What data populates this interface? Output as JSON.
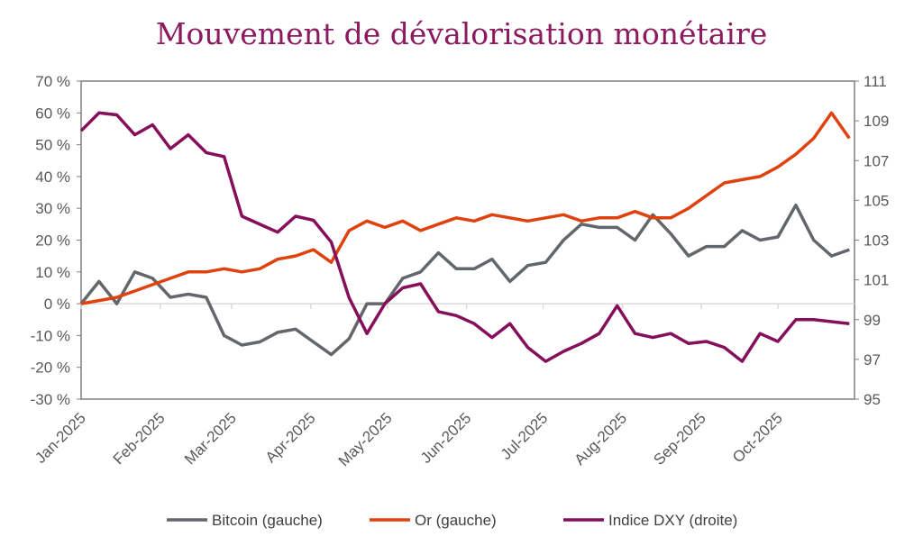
{
  "chart_data": {
    "type": "line",
    "title": "Mouvement de dévalorisation monétaire",
    "x": [
      "2025-01-01",
      "2025-01-08",
      "2025-01-15",
      "2025-01-22",
      "2025-01-29",
      "2025-02-05",
      "2025-02-12",
      "2025-02-19",
      "2025-02-26",
      "2025-03-05",
      "2025-03-12",
      "2025-03-19",
      "2025-03-26",
      "2025-04-02",
      "2025-04-09",
      "2025-04-16",
      "2025-04-23",
      "2025-04-30",
      "2025-05-07",
      "2025-05-14",
      "2025-05-21",
      "2025-05-28",
      "2025-06-04",
      "2025-06-11",
      "2025-06-18",
      "2025-06-25",
      "2025-07-02",
      "2025-07-09",
      "2025-07-16",
      "2025-07-23",
      "2025-07-30",
      "2025-08-06",
      "2025-08-13",
      "2025-08-20",
      "2025-08-27",
      "2025-09-03",
      "2025-09-10",
      "2025-09-17",
      "2025-09-24",
      "2025-10-01",
      "2025-10-08",
      "2025-10-15",
      "2025-10-22",
      "2025-10-29"
    ],
    "x_tick_labels": [
      "Jan-2025",
      "Feb-2025",
      "Mar-2025",
      "Apr-2025",
      "May-2025",
      "Jun-2025",
      "Jul-2025",
      "Aug-2025",
      "Sep-2025",
      "Oct-2025"
    ],
    "y_left": {
      "ylim": [
        -30,
        70
      ],
      "tick_labels": [
        "-30 %",
        "-20 %",
        "-10 %",
        "0 %",
        "10 %",
        "20 %",
        "30 %",
        "40 %",
        "50 %",
        "60 %",
        "70 %"
      ]
    },
    "y_right": {
      "ylim": [
        95,
        111
      ],
      "tick_labels": [
        "95",
        "97",
        "99",
        "101",
        "103",
        "105",
        "107",
        "109",
        "111"
      ]
    },
    "legend_position": "bottom",
    "grid": false,
    "series": [
      {
        "name": "Bitcoin (gauche)",
        "axis": "left",
        "color": "#63666a",
        "values": [
          0,
          7,
          0,
          10,
          8,
          2,
          3,
          2,
          -10,
          -13,
          -12,
          -9,
          -8,
          -12,
          -16,
          -11,
          0,
          0,
          8,
          10,
          16,
          11,
          11,
          14,
          7,
          12,
          13,
          20,
          25,
          24,
          24,
          20,
          28,
          22,
          15,
          18,
          18,
          23,
          20,
          21,
          31,
          20,
          15,
          17
        ]
      },
      {
        "name": "Or (gauche)",
        "axis": "left",
        "color": "#e0420e",
        "values": [
          0,
          1,
          2,
          4,
          6,
          8,
          10,
          10,
          11,
          10,
          11,
          14,
          15,
          17,
          13,
          23,
          26,
          24,
          26,
          23,
          25,
          27,
          26,
          28,
          27,
          26,
          27,
          28,
          26,
          27,
          27,
          29,
          27,
          27,
          30,
          34,
          38,
          39,
          40,
          43,
          47,
          52,
          60,
          52
        ]
      },
      {
        "name": "Indice DXY (droite)",
        "axis": "right",
        "color": "#850f5a",
        "values": [
          108.5,
          109.4,
          109.3,
          108.3,
          108.8,
          107.6,
          108.3,
          107.4,
          107.2,
          104.2,
          103.8,
          103.4,
          104.2,
          104.0,
          102.9,
          100.1,
          98.3,
          99.8,
          100.6,
          100.8,
          99.4,
          99.2,
          98.8,
          98.1,
          98.8,
          97.6,
          96.9,
          97.4,
          97.8,
          98.3,
          99.7,
          98.3,
          98.1,
          98.3,
          97.8,
          97.9,
          97.6,
          96.9,
          98.3,
          97.9,
          99.0,
          99.0,
          98.9,
          98.8
        ]
      }
    ]
  }
}
